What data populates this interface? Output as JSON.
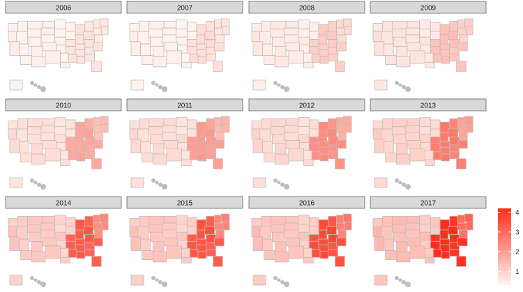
{
  "chart_data": {
    "type": "choropleth-small-multiples",
    "panels": [
      {
        "year": "2006",
        "level": 0.35,
        "east": 0.6
      },
      {
        "year": "2007",
        "level": 0.35,
        "east": 0.7
      },
      {
        "year": "2008",
        "level": 0.45,
        "east": 1.0
      },
      {
        "year": "2009",
        "level": 0.55,
        "east": 1.2
      },
      {
        "year": "2010",
        "level": 0.65,
        "east": 1.7
      },
      {
        "year": "2011",
        "level": 0.7,
        "east": 1.9
      },
      {
        "year": "2012",
        "level": 0.75,
        "east": 2.2
      },
      {
        "year": "2013",
        "level": 0.85,
        "east": 2.5
      },
      {
        "year": "2014",
        "level": 1.0,
        "east": 3.1
      },
      {
        "year": "2015",
        "level": 1.05,
        "east": 3.2
      },
      {
        "year": "2016",
        "level": 1.1,
        "east": 3.4
      },
      {
        "year": "2017",
        "level": 1.2,
        "east": 4.0
      }
    ],
    "legend": {
      "ticks": [
        "1",
        "2",
        "3",
        "4"
      ],
      "tick_values": [
        1,
        2,
        3,
        4
      ],
      "range": [
        0.3,
        4.2
      ],
      "low_color": "#fff5f0",
      "high_color": "#ff2d1a"
    },
    "strip_fill": "#d9d9d9",
    "border_color": "#bdbdbd"
  }
}
